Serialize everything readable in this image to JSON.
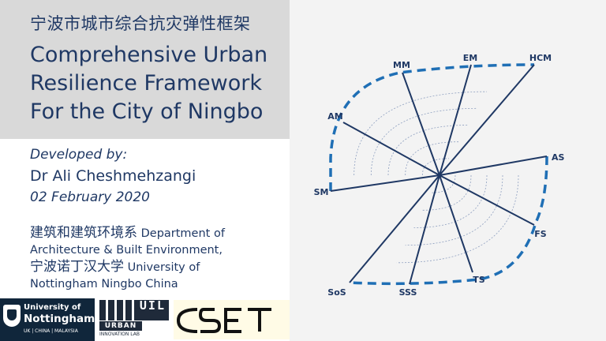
{
  "slide": {
    "title_cn": "宁波市城市综合抗灾弹性框架",
    "title_en": "Comprehensive Urban Resilience Framework For the City of Ningbo",
    "developed_by": "Developed by:",
    "author": "Dr Ali Cheshmehzangi",
    "date": "02 February 2020",
    "dept_cn": "建筑和建筑环境系",
    "dept_en": " Department of Architecture & Built Environment,",
    "univ_cn": "宁波诺丁汉大学",
    "univ_en": " University of Nottingham Ningbo China"
  },
  "logos": {
    "uon_line1": "University of",
    "uon_line2": "Nottingham",
    "uon_line3": "UK | CHINA | MALAYSIA",
    "uil_mark": "UIL",
    "uil_urban": "URBAN",
    "uil_sub": "INNOVATION LAB",
    "cset_text": "CSET"
  },
  "diagram": {
    "axes": [
      "MM",
      "EM",
      "HCM",
      "AM",
      "AS",
      "SM",
      "FS",
      "SoS",
      "SSS",
      "TS"
    ],
    "line_color": "#1f3864",
    "outline_color": "#1f6fb5"
  }
}
